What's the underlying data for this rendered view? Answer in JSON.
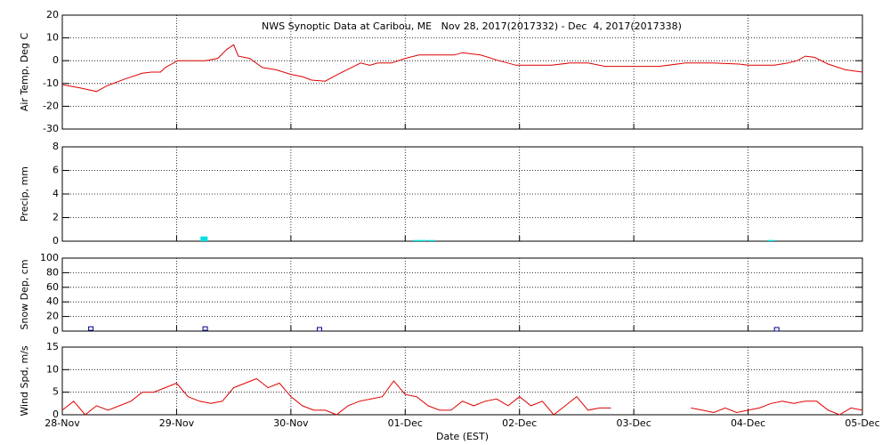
{
  "chart_data": [
    {
      "type": "line",
      "title": "NWS Synoptic Data at Caribou, ME   Nov 28, 2017(2017332) - Dec  4, 2017(2017338)",
      "ylabel": "Air Temp, Deg C",
      "xlim": [
        0,
        7
      ],
      "xticks": [
        0,
        1,
        2,
        3,
        4,
        5,
        6,
        7
      ],
      "ylim": [
        -30,
        20
      ],
      "yticks": [
        -30,
        -20,
        -10,
        0,
        10,
        20
      ],
      "grid": true,
      "series": [
        {
          "color": "#e00000",
          "x": [
            0,
            0.16,
            0.3,
            0.39,
            0.55,
            0.7,
            0.78,
            0.86,
            0.9,
            1.01,
            1.25,
            1.36,
            1.44,
            1.5,
            1.54,
            1.64,
            1.75,
            1.87,
            2.0,
            2.1,
            2.18,
            2.3,
            2.41,
            2.53,
            2.61,
            2.69,
            2.76,
            2.88,
            3.0,
            3.12,
            3.27,
            3.43,
            3.5,
            3.66,
            3.82,
            3.97,
            4.13,
            4.28,
            4.44,
            4.6,
            4.75,
            4.91,
            5.22,
            5.45,
            5.69,
            5.92,
            6.0,
            6.23,
            6.35,
            6.43,
            6.5,
            6.58,
            6.7,
            6.85,
            7.0
          ],
          "values": [
            -10.5,
            -12,
            -13.5,
            -11,
            -8,
            -5.5,
            -5,
            -5,
            -3,
            0,
            0,
            1,
            5,
            7,
            2,
            1,
            -3,
            -4,
            -6,
            -7,
            -8.5,
            -9,
            -6,
            -3,
            -1,
            -2,
            -1,
            -1,
            1,
            2.5,
            2.5,
            2.5,
            3.5,
            2.5,
            0,
            -2,
            -2,
            -2,
            -1,
            -1,
            -2.5,
            -2.5,
            -2.5,
            -1,
            -1,
            -1.5,
            -2,
            -2,
            -1,
            0,
            2,
            1.5,
            -1.5,
            -4,
            -5
          ]
        }
      ]
    },
    {
      "type": "bar",
      "ylabel": "Precip, mm",
      "xlim": [
        0,
        7
      ],
      "xticks": [
        0,
        1,
        2,
        3,
        4,
        5,
        6,
        7
      ],
      "ylim": [
        0,
        8
      ],
      "yticks": [
        0,
        2,
        4,
        6,
        8
      ],
      "grid": true,
      "series": [
        {
          "color": "#00e0e0",
          "x": [
            1.24,
            3.1,
            3.15,
            3.23,
            6.2
          ],
          "values": [
            0.4,
            0.1,
            0.1,
            0.1,
            0.1
          ]
        }
      ]
    },
    {
      "type": "scatter",
      "ylabel": "Snow Dep, cm",
      "xlim": [
        0,
        7
      ],
      "xticks": [
        0,
        1,
        2,
        3,
        4,
        5,
        6,
        7
      ],
      "ylim": [
        0,
        100
      ],
      "yticks": [
        0,
        20,
        40,
        60,
        80,
        100
      ],
      "grid": true,
      "series": [
        {
          "color": "#000080",
          "x": [
            0.25,
            1.25,
            2.25,
            6.25
          ],
          "values": [
            1,
            1,
            0,
            0
          ]
        }
      ]
    },
    {
      "type": "line",
      "ylabel": "Wind Spd, m/s",
      "xlabel": "Date (EST)",
      "xlim": [
        0,
        7
      ],
      "xticks": [
        {
          "value": 0,
          "label": "28-Nov"
        },
        {
          "value": 1,
          "label": "29-Nov"
        },
        {
          "value": 2,
          "label": "30-Nov"
        },
        {
          "value": 3,
          "label": "01-Dec"
        },
        {
          "value": 4,
          "label": "02-Dec"
        },
        {
          "value": 5,
          "label": "03-Dec"
        },
        {
          "value": 6,
          "label": "04-Dec"
        },
        {
          "value": 7,
          "label": "05-Dec"
        }
      ],
      "ylim": [
        0,
        15
      ],
      "yticks": [
        0,
        5,
        10,
        15
      ],
      "grid": true,
      "series": [
        {
          "color": "#e00000",
          "x": [
            0,
            0.1,
            0.2,
            0.3,
            0.4,
            0.5,
            0.6,
            0.7,
            0.8,
            0.9,
            1,
            1.1,
            1.2,
            1.3,
            1.4,
            1.5,
            1.6,
            1.7,
            1.8,
            1.9,
            2,
            2.1,
            2.2,
            2.3,
            2.4,
            2.5,
            2.6,
            2.7,
            2.8,
            2.9,
            3,
            3.1,
            3.2,
            3.3,
            3.4,
            3.5,
            3.6,
            3.7,
            3.8,
            3.9,
            4,
            4.1,
            4.2,
            4.3,
            4.4,
            4.5,
            4.6,
            4.7,
            4.8,
            4.9,
            5,
            5.1,
            5.2,
            5.3,
            5.4,
            5.5,
            5.6,
            5.7,
            5.8,
            5.9,
            6,
            6.1,
            6.2,
            6.3,
            6.4,
            6.5,
            6.6,
            6.7,
            6.8,
            6.9,
            7
          ],
          "values": [
            1,
            3,
            0,
            2,
            1,
            2,
            3,
            5,
            5,
            6,
            7,
            4,
            3,
            2.5,
            3,
            6,
            7,
            8,
            6,
            7,
            4,
            2,
            1,
            1,
            0,
            2,
            3,
            3.5,
            4,
            7.5,
            4.5,
            4,
            2,
            1,
            1,
            3,
            2,
            3,
            3.5,
            2,
            4,
            2,
            3,
            0,
            2,
            4,
            1,
            1.5,
            1.5,
            null,
            null,
            null,
            null,
            null,
            null,
            1.5,
            1,
            0.5,
            1.5,
            0.5,
            1,
            1.5,
            2.5,
            3,
            2.5,
            3,
            3,
            1,
            0,
            1.5,
            1
          ]
        }
      ]
    }
  ]
}
